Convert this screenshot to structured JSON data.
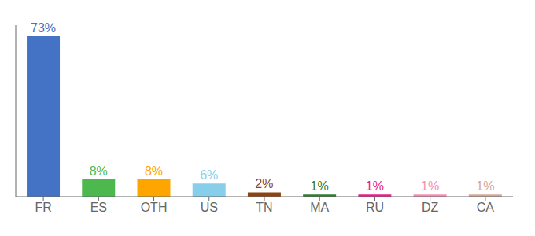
{
  "chart_data": {
    "type": "bar",
    "categories": [
      "FR",
      "ES",
      "OTH",
      "US",
      "TN",
      "MA",
      "RU",
      "DZ",
      "CA"
    ],
    "values": [
      73,
      8,
      8,
      6,
      2,
      1,
      1,
      1,
      1
    ],
    "value_labels": [
      "73%",
      "8%",
      "8%",
      "6%",
      "2%",
      "1%",
      "1%",
      "1%",
      "1%"
    ],
    "colors": [
      "#4472c4",
      "#4db84e",
      "#ffa500",
      "#87ceeb",
      "#8b4513",
      "#2e7d32",
      "#e91e8c",
      "#f48fb1",
      "#d2a898"
    ],
    "ylim": [
      0,
      78
    ],
    "data_labels": true,
    "tick_labels": "x",
    "grid": false
  }
}
